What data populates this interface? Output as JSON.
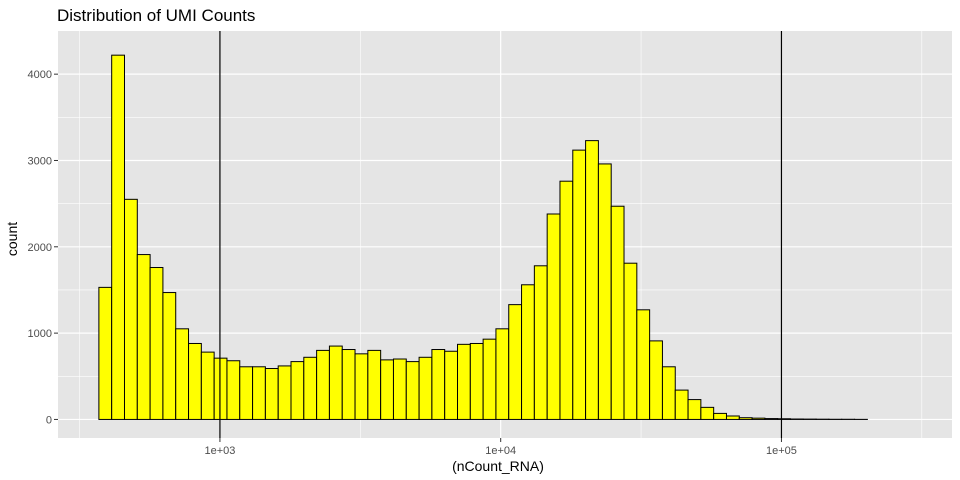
{
  "chart_data": {
    "type": "bar",
    "title": "Distribution of UMI Counts",
    "xlabel": "(nCount_RNA)",
    "ylabel": "count",
    "x_scale": "log10",
    "xlim": [
      265,
      405000
    ],
    "ylim": [
      -215,
      4500
    ],
    "x_ticks": [
      {
        "value": 1000,
        "label": "1e+03"
      },
      {
        "value": 10000,
        "label": "1e+04"
      },
      {
        "value": 100000,
        "label": "1e+05"
      }
    ],
    "y_ticks": [
      {
        "value": 0,
        "label": "0"
      },
      {
        "value": 1000,
        "label": "1000"
      },
      {
        "value": 2000,
        "label": "2000"
      },
      {
        "value": 3000,
        "label": "3000"
      },
      {
        "value": 4000,
        "label": "4000"
      }
    ],
    "bin_log_start": 2.4776,
    "bin_log_width": 0.04562,
    "counts": [
      0,
      0,
      1530,
      4220,
      2550,
      1910,
      1760,
      1470,
      1050,
      880,
      780,
      710,
      680,
      610,
      610,
      590,
      620,
      670,
      720,
      800,
      850,
      810,
      760,
      800,
      690,
      700,
      670,
      720,
      810,
      790,
      870,
      880,
      930,
      1050,
      1330,
      1560,
      1780,
      2380,
      2760,
      3120,
      3230,
      2960,
      2470,
      1810,
      1270,
      910,
      610,
      340,
      230,
      140,
      70,
      40,
      20,
      15,
      10,
      8,
      5,
      4,
      3,
      2,
      2,
      1
    ],
    "vlines": [
      1000,
      100000
    ],
    "grid": true,
    "colors": {
      "panel_background": "#E5E5E5",
      "grid": "#FFFFFF",
      "bar_fill": "#FFFF00",
      "bar_outline": "#000000",
      "vline": "#000000"
    }
  }
}
